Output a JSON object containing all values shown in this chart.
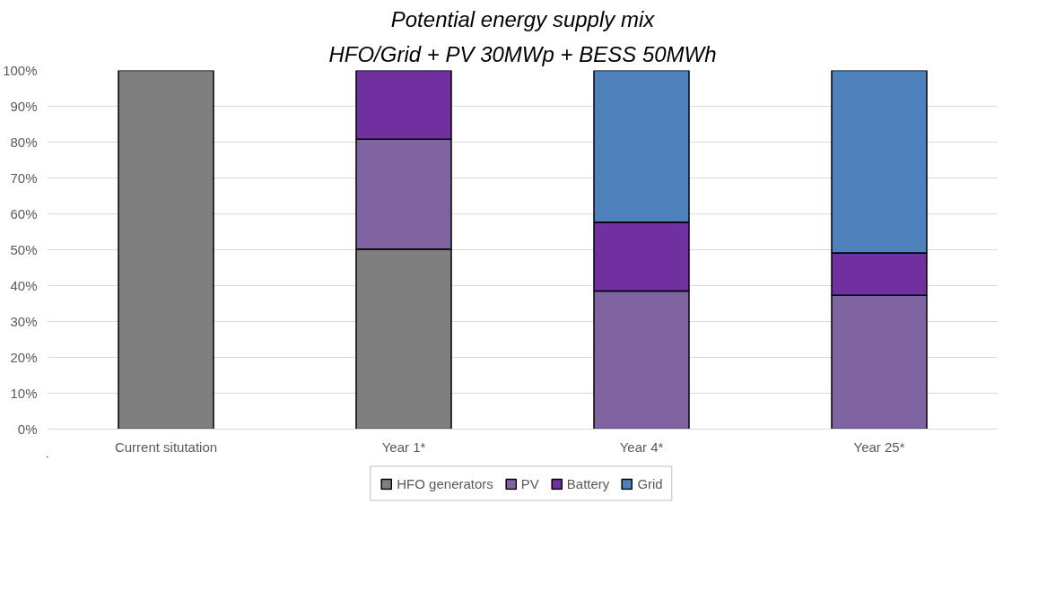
{
  "chart_data": {
    "type": "bar",
    "stacked": true,
    "title": "Potential energy supply mix",
    "subtitle": "HFO/Grid + PV 30MWp + BESS 50MWh",
    "categories": [
      "Current situtation",
      "Year 1*",
      "Year 4*",
      "Year 25*"
    ],
    "series": [
      {
        "name": "HFO generators",
        "color": "#7f7f7f",
        "values": [
          100,
          50.2,
          null,
          null
        ]
      },
      {
        "name": "PV",
        "color": "#8064a2",
        "values": [
          null,
          30.6,
          38.5,
          37.3
        ]
      },
      {
        "name": "Battery",
        "color": "#7030a0",
        "values": [
          null,
          19.2,
          19.2,
          11.8
        ]
      },
      {
        "name": "Grid",
        "color": "#4f81bd",
        "values": [
          null,
          null,
          42.3,
          50.9
        ]
      }
    ],
    "ylim": [
      0,
      100
    ],
    "yticks": [
      {
        "value": 0,
        "label": "0%"
      },
      {
        "value": 10,
        "label": "10%"
      },
      {
        "value": 20,
        "label": "20%"
      },
      {
        "value": 30,
        "label": "30%"
      },
      {
        "value": 40,
        "label": "40%"
      },
      {
        "value": 50,
        "label": "50%"
      },
      {
        "value": 60,
        "label": "60%"
      },
      {
        "value": 70,
        "label": "70%"
      },
      {
        "value": 80,
        "label": "80%"
      },
      {
        "value": 90,
        "label": "90%"
      },
      {
        "value": 100,
        "label": "100%"
      }
    ],
    "grid": "y",
    "legend": "bottom"
  }
}
